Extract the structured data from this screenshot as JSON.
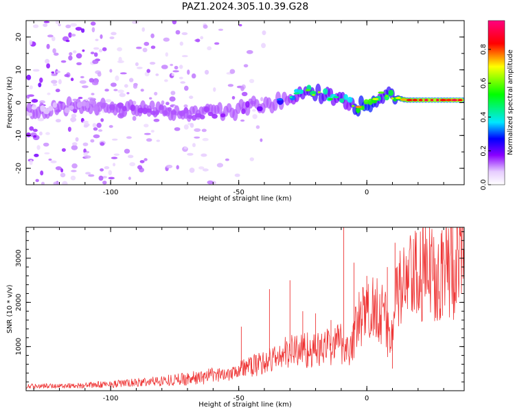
{
  "title": "PAZ1.2024.305.10.39.G28",
  "chart_data": [
    {
      "type": "heatmap",
      "xlabel": "Height of straight line (km)",
      "ylabel": "Frequency (Hz)",
      "xlim": [
        -133,
        38
      ],
      "ylim": [
        -25,
        25
      ],
      "x_ticks": [
        -100,
        -50,
        0
      ],
      "y_ticks": [
        -20,
        -10,
        0,
        10,
        20
      ],
      "colorbar": {
        "label": "Normalized spectral amplitude",
        "range": [
          0,
          0.97
        ],
        "ticks": [
          0.0,
          0.2,
          0.4,
          0.6,
          0.8
        ]
      },
      "ridge": {
        "x": [
          -133,
          -120,
          -110,
          -100,
          -90,
          -80,
          -70,
          -60,
          -55,
          -50,
          -45,
          -40,
          -35,
          -30,
          -25,
          -20,
          -15,
          -12,
          -10,
          -7,
          -5,
          -3,
          0,
          3,
          5,
          8,
          12,
          15,
          20,
          25,
          30,
          35,
          38
        ],
        "y": [
          -2.5,
          -1.5,
          -0.5,
          -1.0,
          -1.5,
          -2.5,
          -3.5,
          -3.0,
          -3.0,
          -2.0,
          -0.5,
          -1.0,
          0.0,
          1.5,
          3.5,
          3.0,
          2.0,
          1.0,
          2.0,
          0.0,
          -1.5,
          -1.0,
          -0.5,
          0.5,
          2.5,
          2.5,
          1.5,
          0.8,
          0.8,
          0.8,
          0.8,
          0.8,
          0.8
        ],
        "amplitude": [
          0.1,
          0.12,
          0.15,
          0.2,
          0.22,
          0.2,
          0.2,
          0.22,
          0.25,
          0.22,
          0.25,
          0.3,
          0.35,
          0.45,
          0.6,
          0.7,
          0.6,
          0.55,
          0.65,
          0.5,
          0.75,
          0.8,
          0.85,
          0.8,
          0.65,
          0.7,
          0.8,
          0.9,
          0.95,
          0.95,
          0.95,
          0.97,
          0.97
        ]
      }
    },
    {
      "type": "line",
      "xlabel": "Height of straight line (km)",
      "ylabel": "SNR (10 * v/v)",
      "xlim": [
        -133,
        38
      ],
      "ylim": [
        0,
        3700
      ],
      "x_ticks": [
        -100,
        -50,
        0
      ],
      "y_ticks": [
        1000,
        2000,
        3000
      ],
      "color": "#ee3333",
      "trend": {
        "x": [
          -133,
          -110,
          -90,
          -75,
          -65,
          -55,
          -50,
          -45,
          -40,
          -35,
          -30,
          -25,
          -20,
          -15,
          -10,
          -7,
          -5,
          -3,
          0,
          3,
          5,
          7,
          9,
          10,
          12,
          15,
          20,
          25,
          30,
          38
        ],
        "y": [
          100,
          120,
          180,
          250,
          300,
          380,
          500,
          550,
          650,
          750,
          900,
          950,
          900,
          1000,
          1100,
          900,
          1250,
          1600,
          1750,
          1900,
          2000,
          1600,
          1200,
          1400,
          2200,
          2400,
          2550,
          2700,
          2800,
          2850
        ]
      },
      "spikes": [
        {
          "x": -49,
          "y": 1450
        },
        {
          "x": -38,
          "y": 2300
        },
        {
          "x": -30,
          "y": 2500
        },
        {
          "x": -25,
          "y": 1800
        },
        {
          "x": -20,
          "y": 1750
        },
        {
          "x": -14,
          "y": 1600
        },
        {
          "x": -9,
          "y": 3700
        },
        {
          "x": -5,
          "y": 2900
        },
        {
          "x": 0,
          "y": 2600
        },
        {
          "x": 8,
          "y": 2800
        },
        {
          "x": 11,
          "y": 3350
        },
        {
          "x": 10,
          "y": 500
        }
      ]
    }
  ]
}
